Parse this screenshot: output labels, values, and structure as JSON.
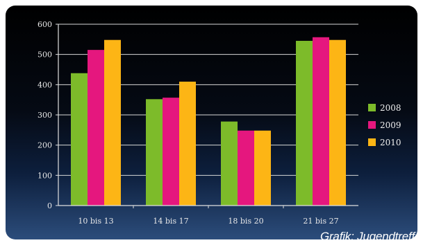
{
  "chart_data": {
    "type": "bar",
    "categories": [
      "10 bis 13",
      "14 bis 17",
      "18 bis 20",
      "21 bis 27"
    ],
    "series": [
      {
        "name": "2008",
        "values": [
          438,
          352,
          278,
          545
        ]
      },
      {
        "name": "2009",
        "values": [
          515,
          357,
          248,
          557
        ]
      },
      {
        "name": "2010",
        "values": [
          548,
          410,
          248,
          548
        ]
      }
    ],
    "ylim": [
      0,
      600
    ],
    "yticks": [
      0,
      100,
      200,
      300,
      400,
      500,
      600
    ],
    "grid": true,
    "legend_position": "right",
    "colors": [
      "#7dbb2a",
      "#e5177e",
      "#fdb515"
    ]
  },
  "credit": "Grafik: Jugendtreff"
}
